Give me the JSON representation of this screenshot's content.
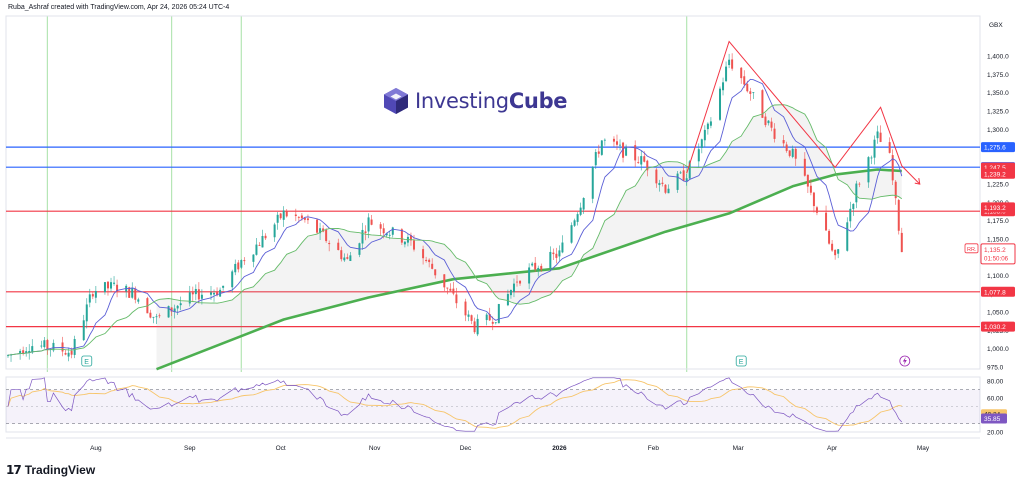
{
  "header": {
    "attribution": "Ruba_Ashraf created with TradingView.com, Apr 24, 2026 05:24 UTC-4"
  },
  "watermark": {
    "brand_light": "Investing",
    "brand_bold": "Cube"
  },
  "footer": {
    "brand": "TradingView",
    "icon": "tradingview-logo-icon"
  },
  "colors": {
    "up": "#26a69a",
    "down": "#ef5350",
    "ma200": "#4caf50",
    "ma_fast": "#5b5fd6",
    "ma_mid": "#66bb6a",
    "level_red": "#f23645",
    "level_blue": "#2962ff",
    "pattern": "#f23645",
    "rsi": "#7e57c2",
    "rsi_signal": "#f7c56b",
    "vline": "#b5e6b5"
  },
  "chart_data": {
    "type": "candlestick",
    "currency": "GBX",
    "ylim": [
      975,
      1425
    ],
    "y_ticks": [
      "1,400.0",
      "1,375.0",
      "1,350.0",
      "1,325.0",
      "1,300.0",
      "1,275.0",
      "1,250.0",
      "1,225.0",
      "1,200.0",
      "1,175.0",
      "1,150.0",
      "1,125.0",
      "1,100.0",
      "1,075.0",
      "1,050.0",
      "1,025.0",
      "1,000.0",
      "975.0"
    ],
    "x_ticks": [
      "Aug",
      "Sep",
      "Oct",
      "Nov",
      "Dec",
      "2026",
      "Feb",
      "Mar",
      "Apr",
      "May"
    ],
    "close_path": [
      [
        "Jul 03",
        990
      ],
      [
        "Jul 10",
        1005
      ],
      [
        "Jul 17",
        1002
      ],
      [
        "Jul 24",
        995
      ],
      [
        "Jul 31",
        1080
      ],
      [
        "Aug 07",
        1085
      ],
      [
        "Aug 14",
        1075
      ],
      [
        "Aug 21",
        1040
      ],
      [
        "Aug 28",
        1060
      ],
      [
        "Sep 04",
        1075
      ],
      [
        "Sep 11",
        1080
      ],
      [
        "Sep 18",
        1120
      ],
      [
        "Sep 25",
        1150
      ],
      [
        "Oct 02",
        1185
      ],
      [
        "Oct 09",
        1175
      ],
      [
        "Oct 16",
        1150
      ],
      [
        "Oct 23",
        1120
      ],
      [
        "Oct 30",
        1175
      ],
      [
        "Nov 06",
        1160
      ],
      [
        "Nov 13",
        1145
      ],
      [
        "Nov 20",
        1110
      ],
      [
        "Nov 27",
        1070
      ],
      [
        "Dec 04",
        1030
      ],
      [
        "Dec 11",
        1045
      ],
      [
        "Dec 18",
        1095
      ],
      [
        "Dec 25",
        1115
      ],
      [
        "Jan 01",
        1130
      ],
      [
        "Jan 08",
        1200
      ],
      [
        "Jan 15",
        1285
      ],
      [
        "Jan 22",
        1270
      ],
      [
        "Jan 29",
        1255
      ],
      [
        "Feb 05",
        1220
      ],
      [
        "Feb 12",
        1240
      ],
      [
        "Feb 19",
        1300
      ],
      [
        "Feb 26",
        1395
      ],
      [
        "Mar 05",
        1350
      ],
      [
        "Mar 12",
        1300
      ],
      [
        "Mar 19",
        1265
      ],
      [
        "Mar 26",
        1200
      ],
      [
        "Apr 02",
        1120
      ],
      [
        "Apr 09",
        1220
      ],
      [
        "Apr 16",
        1290
      ],
      [
        "Apr 20",
        1260
      ],
      [
        "Apr 24",
        1135
      ]
    ],
    "ma_200_path": [
      [
        "Aug 21",
        972
      ],
      [
        "Oct 02",
        1040
      ],
      [
        "Oct 30",
        1070
      ],
      [
        "Nov 27",
        1095
      ],
      [
        "Jan 01",
        1110
      ],
      [
        "Feb 05",
        1160
      ],
      [
        "Feb 26",
        1185
      ],
      [
        "Mar 19",
        1222
      ],
      [
        "Apr 02",
        1238
      ],
      [
        "Apr 16",
        1245
      ],
      [
        "Apr 24",
        1243
      ]
    ],
    "levels": [
      {
        "label": "1,275.6",
        "value": 1275.6,
        "color": "blue"
      },
      {
        "label": "1,248.2",
        "value": 1248.2,
        "color": "blue"
      },
      {
        "label": "1,188.0",
        "value": 1188.0,
        "color": "red"
      },
      {
        "label": "1,077.8",
        "value": 1077.8,
        "color": "red"
      },
      {
        "label": "1,030.2",
        "value": 1030.2,
        "color": "red"
      }
    ],
    "extra_tags": [
      {
        "label": "1,247.5",
        "value": 1247.5
      },
      {
        "label": "1,239.2",
        "value": 1239.2
      },
      {
        "label": "1,193.2",
        "value": 1193.2
      }
    ],
    "last_price": {
      "label": "1,135.2",
      "countdown": "01:50:06",
      "symbol": "RR.",
      "value": 1135.2
    },
    "pattern_points": [
      [
        "Feb 12",
        1240
      ],
      [
        "Feb 26",
        1420
      ],
      [
        "Apr 02",
        1248
      ],
      [
        "Apr 17",
        1330
      ],
      [
        "Apr 24",
        1250
      ]
    ],
    "rsi": {
      "ylim": [
        20,
        85
      ],
      "y_ticks": [
        "80.00",
        "60.00",
        "40.00",
        "20.00"
      ],
      "bands": [
        70,
        30
      ],
      "current": [
        {
          "label": "40.24"
        },
        {
          "label": "35.85"
        }
      ]
    },
    "event_markers": [
      "E",
      "E"
    ],
    "alert_marker": "bolt-icon"
  }
}
